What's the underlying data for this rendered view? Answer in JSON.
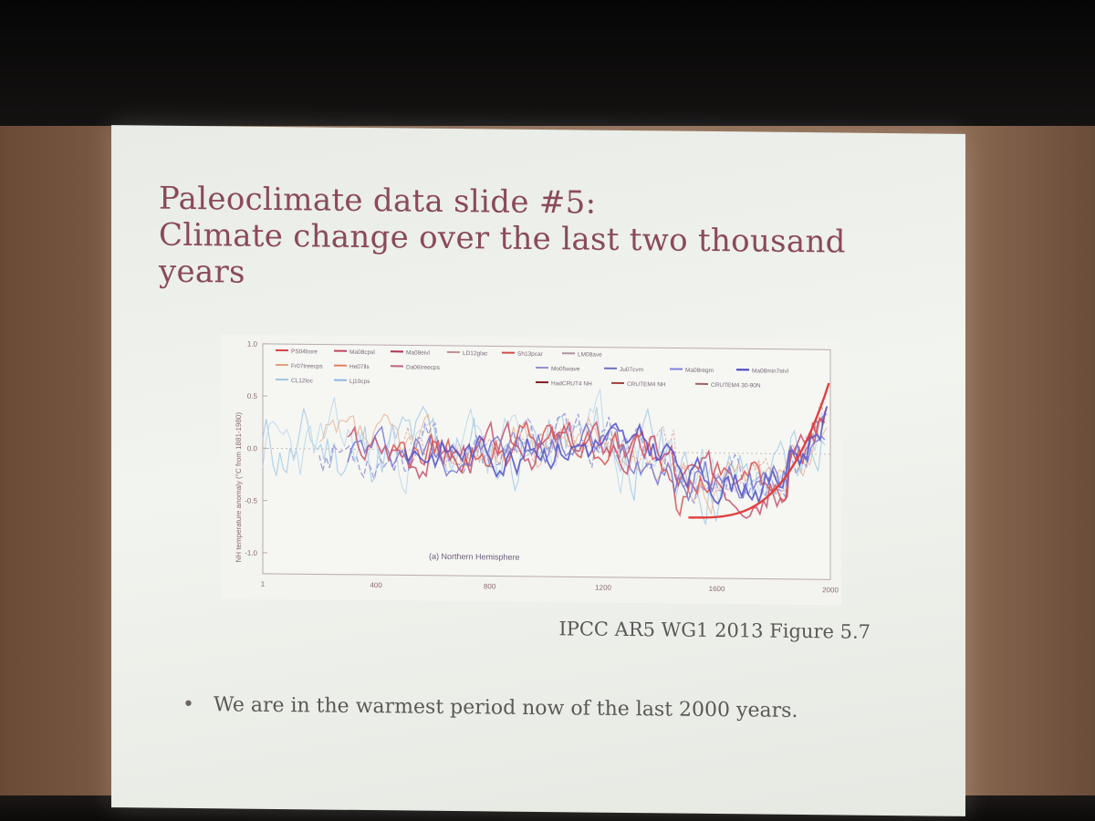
{
  "slide": {
    "title_lines": [
      "Paleoclimate data slide #5:",
      "Climate change over the last two thousand",
      "years"
    ],
    "caption": "IPCC AR5 WG1 2013 Figure 5.7",
    "bullets": [
      "We are in the warmest period now of the last 2000 years."
    ]
  },
  "figure": {
    "panel_label": "(a) Northern Hemisphere",
    "ylabel": "NH temperature anomaly (°C from 1881-1980)",
    "y_ticks": [
      "1.0",
      "0.5",
      "0.0",
      "-0.5",
      "-1.0"
    ],
    "x_ticks": [
      "1",
      "400",
      "800",
      "1200",
      "1600",
      "2000"
    ],
    "legend": [
      {
        "label": "PS04bore",
        "color": "#d84040"
      },
      {
        "label": "Ma08cpsl",
        "color": "#c04860"
      },
      {
        "label": "Ma08eivl",
        "color": "#b03050"
      },
      {
        "label": "LD12glac",
        "color": "#c09090"
      },
      {
        "label": "Sh13pcar",
        "color": "#d05050"
      },
      {
        "label": "LM08ave",
        "color": "#b090a0"
      },
      {
        "label": "Fr07treecps",
        "color": "#e0a080"
      },
      {
        "label": "He07lls",
        "color": "#e08060"
      },
      {
        "label": "Da06treecps",
        "color": "#c06080"
      },
      {
        "label": "Mo05wave",
        "color": "#9090d0"
      },
      {
        "label": "Ju07cvm",
        "color": "#7070c0"
      },
      {
        "label": "Ma08regm",
        "color": "#8080e0"
      },
      {
        "label": "Ma08min7eivl",
        "color": "#4040c0"
      },
      {
        "label": "CL12loc",
        "color": "#a0c8e0"
      },
      {
        "label": "Lj10cps",
        "color": "#90b8e0"
      },
      {
        "label": "HadCRUT4 NH",
        "color": "#802020"
      },
      {
        "label": "CRUTEM4 NH",
        "color": "#a04040"
      },
      {
        "label": "CRUTEM4 30-90N",
        "color": "#a06060"
      }
    ]
  }
}
